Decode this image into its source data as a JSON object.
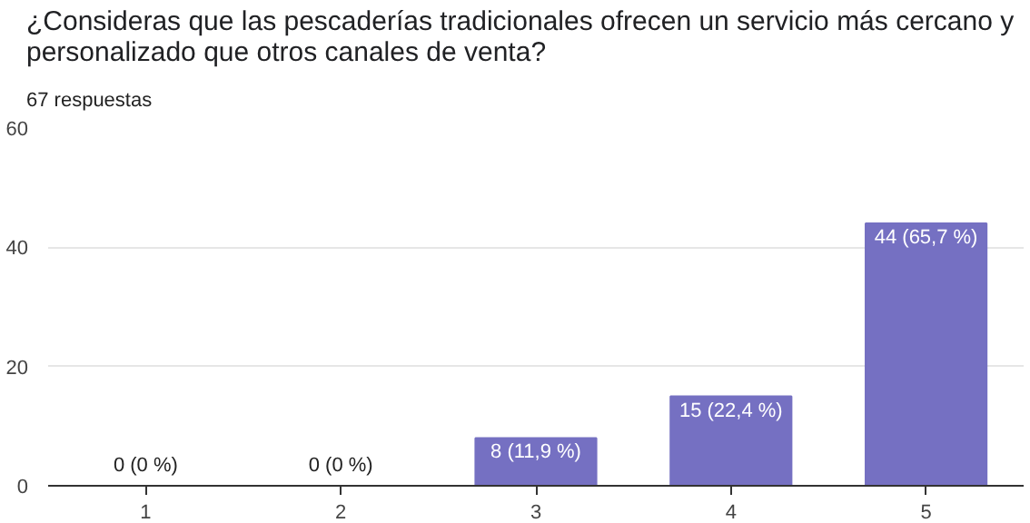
{
  "chart_data": {
    "type": "bar",
    "title": "¿Consideras que las pescaderías tradicionales ofrecen un servicio más cercano y personalizado que otros canales de venta?",
    "subtitle": "67 respuestas",
    "categories": [
      "1",
      "2",
      "3",
      "4",
      "5"
    ],
    "values": [
      0,
      0,
      8,
      15,
      44
    ],
    "value_labels": [
      "0 (0 %)",
      "0 (0 %)",
      "8 (11,9 %)",
      "15 (22,4 %)",
      "44 (65,7 %)"
    ],
    "color": "#7570c2",
    "ylim": [
      0,
      60
    ],
    "yticks": [
      0,
      20,
      40,
      60
    ],
    "grid": "y"
  }
}
